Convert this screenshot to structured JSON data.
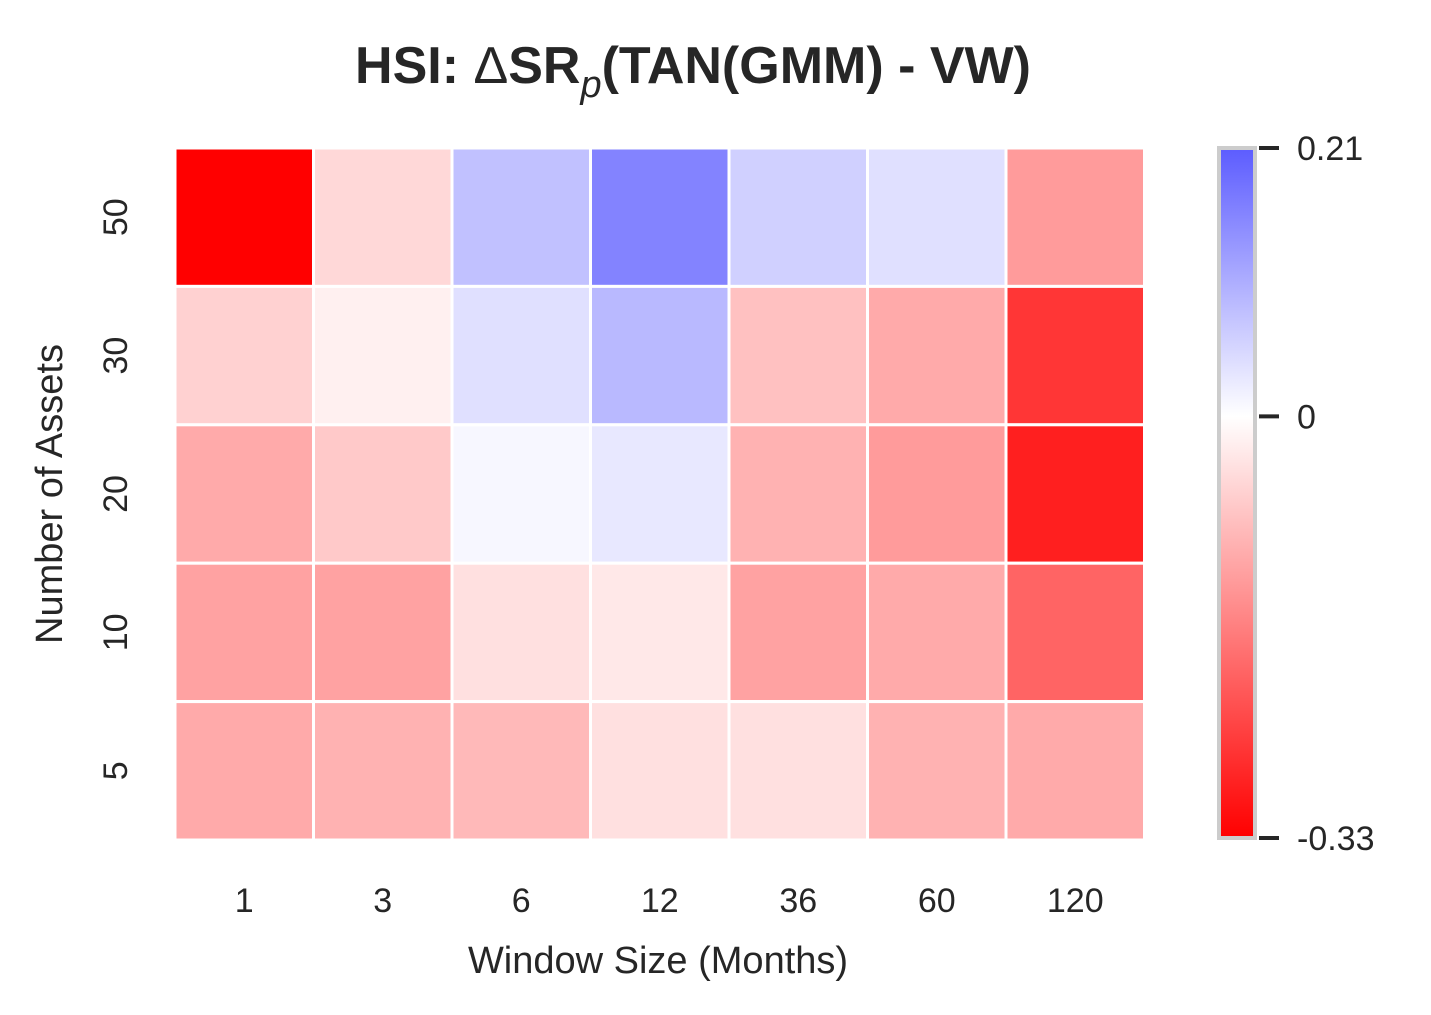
{
  "chart_data": {
    "type": "heatmap",
    "title_parts": {
      "prefix": "HSI: ",
      "delta": "Δ",
      "sr": "SR",
      "subscript": "p",
      "suffix": "(TAN(GMM) - VW)"
    },
    "title": "HSI: ΔSR_p(TAN(GMM) - VW)",
    "xlabel": "Window Size (Months)",
    "ylabel": "Number of Assets",
    "x_categories": [
      "1",
      "3",
      "6",
      "12",
      "36",
      "60",
      "120"
    ],
    "y_categories": [
      "50",
      "30",
      "20",
      "10",
      "5"
    ],
    "values": [
      [
        -0.33,
        -0.05,
        0.08,
        0.16,
        0.06,
        0.04,
        -0.13
      ],
      [
        -0.06,
        -0.02,
        0.04,
        0.09,
        -0.08,
        -0.11,
        -0.26
      ],
      [
        -0.11,
        -0.07,
        0.01,
        0.03,
        -0.1,
        -0.13,
        -0.29
      ],
      [
        -0.12,
        -0.12,
        -0.04,
        -0.03,
        -0.12,
        -0.11,
        -0.2
      ],
      [
        -0.11,
        -0.1,
        -0.09,
        -0.04,
        -0.04,
        -0.1,
        -0.11
      ]
    ],
    "colorbar": {
      "min": -0.33,
      "max": 0.21,
      "ticks": [
        0.21,
        0,
        -0.33
      ],
      "tick_labels": [
        "0.21",
        "0",
        "-0.33"
      ],
      "colors": {
        "low": "#ff0000",
        "mid": "#ffffff",
        "high": "#5c5cff"
      }
    },
    "grid": false,
    "legend": "colorbar-right"
  }
}
